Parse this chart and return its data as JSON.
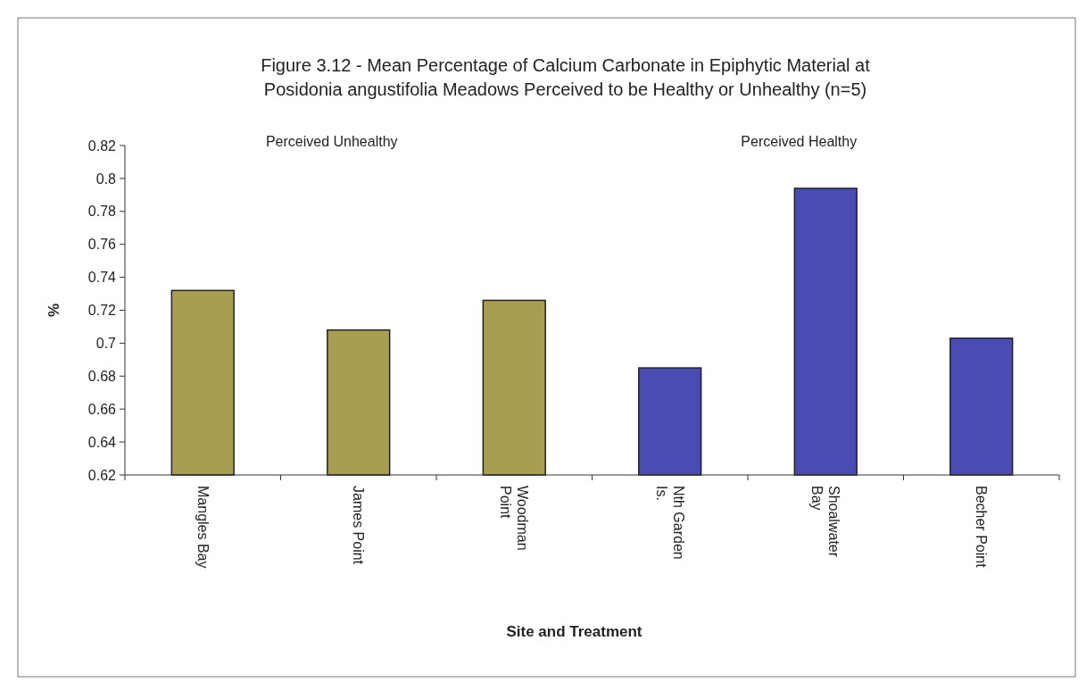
{
  "chart_data": {
    "type": "bar",
    "title": "Figure 3.12 - Mean Percentage of Calcium Carbonate in Epiphytic Material at\nPosidonia angustifolia Meadows Perceived to be Healthy or Unhealthy (n=5)",
    "xlabel": "Site and Treatment",
    "ylabel": "%",
    "categories": [
      "Mangles Bay",
      "James Point",
      "Woodman Point",
      "Nth Garden Is.",
      "Shoalwater Bay",
      "Becher Point"
    ],
    "values": [
      0.732,
      0.708,
      0.726,
      0.685,
      0.794,
      0.703
    ],
    "colors": [
      "#a89e52",
      "#a89e52",
      "#a89e52",
      "#4b4bb4",
      "#4b4bb4",
      "#4b4bb4"
    ],
    "ylim": [
      0.62,
      0.82
    ],
    "yticks": [
      0.62,
      0.64,
      0.66,
      0.68,
      0.7,
      0.72,
      0.74,
      0.76,
      0.78,
      0.8,
      0.82
    ],
    "grid": false,
    "annotations": [
      "Perceived Unhealthy",
      "Perceived Healthy"
    ]
  }
}
